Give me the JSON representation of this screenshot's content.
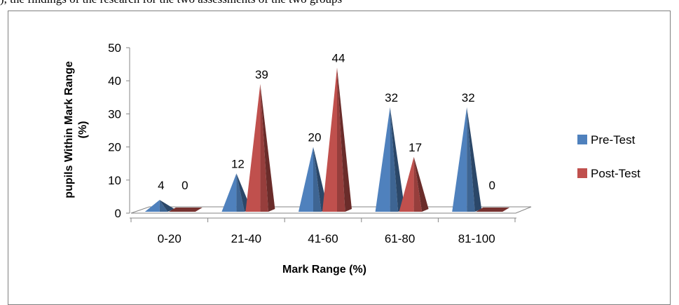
{
  "caption_fragment": "), the findings of the research for the two assessments of the two groups",
  "chart_data": {
    "type": "bar",
    "bar_shape": "3d-cone",
    "categories": [
      "0-20",
      "21-40",
      "41-60",
      "61-80",
      "81-100"
    ],
    "series": [
      {
        "name": "Pre-Test",
        "values": [
          4,
          12,
          20,
          32,
          32
        ],
        "color": "#4f81bd"
      },
      {
        "name": "Post-Test",
        "values": [
          0,
          39,
          44,
          17,
          0
        ],
        "color": "#c0504d"
      }
    ],
    "y_ticks": [
      "0",
      "10",
      "20",
      "30",
      "40",
      "50"
    ],
    "ylim": [
      0,
      50
    ],
    "xlabel": "Mark Range (%)",
    "ylabel_line1": "pupils Within Mark Range",
    "ylabel_line2": "(%)",
    "legend_position": "right"
  }
}
